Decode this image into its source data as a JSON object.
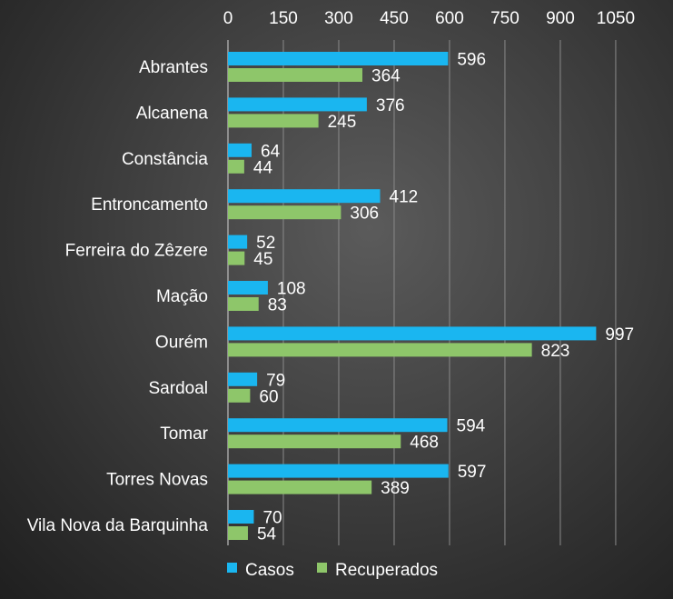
{
  "chart_data": {
    "type": "bar",
    "orientation": "horizontal",
    "title": "",
    "xlabel": "",
    "ylabel": "",
    "xlim": [
      0,
      1050
    ],
    "xticks": [
      0,
      150,
      300,
      450,
      600,
      750,
      900,
      1050
    ],
    "x_axis_position": "top",
    "grid": true,
    "legend_position": "bottom-center",
    "categories": [
      "Abrantes",
      "Alcanena",
      "Constância",
      "Entroncamento",
      "Ferreira do Zêzere",
      "Mação",
      "Ourém",
      "Sardoal",
      "Tomar",
      "Torres Novas",
      "Vila Nova da Barquinha"
    ],
    "series": [
      {
        "name": "Casos",
        "color": "#1ab6f0",
        "values": [
          596,
          376,
          64,
          412,
          52,
          108,
          997,
          79,
          594,
          597,
          70
        ]
      },
      {
        "name": "Recuperados",
        "color": "#8ec66a",
        "values": [
          364,
          245,
          44,
          306,
          45,
          83,
          823,
          60,
          468,
          389,
          54
        ]
      }
    ]
  }
}
